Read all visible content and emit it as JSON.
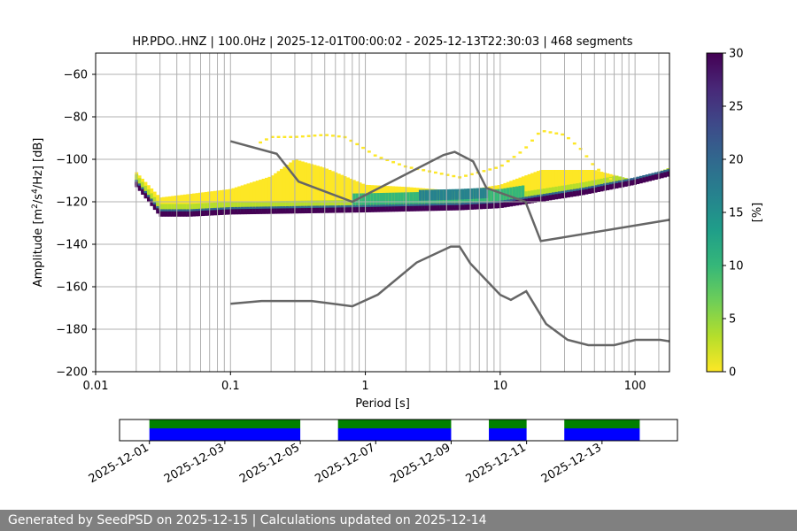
{
  "footer_text": "Generated by SeedPSD on 2025-12-15 | Calculations updated on 2025-12-14",
  "chart_data": [
    {
      "type": "heatmap",
      "title": "HP.PDO..HNZ | 100.0Hz | 2025-12-01T00:00:02 - 2025-12-13T22:30:03 | 468 segments",
      "xlabel": "Period [s]",
      "ylabel_parts": [
        "Amplitude [m",
        "2",
        "/s",
        "4",
        "/Hz] [dB]"
      ],
      "x_scale": "log",
      "xlim": [
        0.01,
        180
      ],
      "ylim": [
        -200,
        -50
      ],
      "x_ticks": [
        {
          "value": 0.01,
          "label": "0.01"
        },
        {
          "value": 0.1,
          "label": "0.1"
        },
        {
          "value": 1,
          "label": "1"
        },
        {
          "value": 10,
          "label": "10"
        },
        {
          "value": 100,
          "label": "100"
        }
      ],
      "y_ticks": [
        {
          "value": -60,
          "label": "−60"
        },
        {
          "value": -80,
          "label": "−80"
        },
        {
          "value": -100,
          "label": "−100"
        },
        {
          "value": -120,
          "label": "−120"
        },
        {
          "value": -140,
          "label": "−140"
        },
        {
          "value": -160,
          "label": "−160"
        },
        {
          "value": -180,
          "label": "−180"
        },
        {
          "value": -200,
          "label": "−200"
        }
      ],
      "grid_periods": [
        0.02,
        0.03,
        0.04,
        0.05,
        0.06,
        0.07,
        0.08,
        0.09,
        0.1,
        0.2,
        0.3,
        0.4,
        0.5,
        0.6,
        0.7,
        0.8,
        0.9,
        1,
        2,
        3,
        4,
        5,
        6,
        7,
        8,
        9,
        10,
        20,
        30,
        40,
        50,
        60,
        70,
        80,
        90,
        100,
        150
      ],
      "colormap": "viridis_r",
      "colorbar": {
        "label": "[%]",
        "range": [
          0,
          30
        ],
        "ticks": [
          {
            "value": 0,
            "label": "0"
          },
          {
            "value": 5,
            "label": "5"
          },
          {
            "value": 10,
            "label": "10"
          },
          {
            "value": 15,
            "label": "15"
          },
          {
            "value": 20,
            "label": "20"
          },
          {
            "value": 25,
            "label": "25"
          },
          {
            "value": 30,
            "label": "30"
          }
        ],
        "colors": [
          "#fde725",
          "#b5de2b",
          "#6ece58",
          "#35b779",
          "#1f9e89",
          "#26828e",
          "#31688e",
          "#3e4989",
          "#482878",
          "#440154"
        ]
      },
      "series": [
        {
          "name": "NHNM",
          "color": "#666666",
          "points": [
            [
              0.1,
              -91.5
            ],
            [
              0.22,
              -97.4
            ],
            [
              0.32,
              -110.5
            ],
            [
              0.8,
              -120
            ],
            [
              3.8,
              -98
            ],
            [
              4.6,
              -96.5
            ],
            [
              6.3,
              -101
            ],
            [
              7.9,
              -113.5
            ],
            [
              15.4,
              -120
            ],
            [
              20,
              -138.5
            ],
            [
              180,
              -128.5
            ]
          ]
        },
        {
          "name": "NLNM",
          "color": "#666666",
          "points": [
            [
              0.1,
              -168
            ],
            [
              0.17,
              -166.7
            ],
            [
              0.4,
              -166.7
            ],
            [
              0.8,
              -169.2
            ],
            [
              1.24,
              -163.7
            ],
            [
              2.4,
              -148.6
            ],
            [
              4.3,
              -141.1
            ],
            [
              5,
              -141.1
            ],
            [
              6,
              -149
            ],
            [
              10,
              -163.8
            ],
            [
              12,
              -166.2
            ],
            [
              15.6,
              -162.1
            ],
            [
              21.9,
              -177.5
            ],
            [
              31.6,
              -185
            ],
            [
              45,
              -187.5
            ],
            [
              70,
              -187.5
            ],
            [
              101,
              -185
            ],
            [
              154,
              -185
            ],
            [
              180,
              -185.7
            ]
          ]
        }
      ],
      "psd_bands": [
        {
          "name": "dense_mode",
          "percent_range": [
            20,
            30
          ],
          "points": [
            [
              0.02,
              -111
            ],
            [
              0.03,
              -125
            ],
            [
              0.05,
              -125
            ],
            [
              0.1,
              -124
            ],
            [
              1,
              -123
            ],
            [
              5,
              -122
            ],
            [
              10,
              -121
            ],
            [
              20,
              -118
            ],
            [
              40,
              -115
            ],
            [
              100,
              -110
            ],
            [
              180,
              -106
            ]
          ]
        },
        {
          "name": "background_spread",
          "percent_range": [
            0,
            10
          ],
          "points": [
            [
              0.02,
              -106
            ],
            [
              0.03,
              -118
            ],
            [
              0.1,
              -114
            ],
            [
              0.2,
              -108
            ],
            [
              0.3,
              -100
            ],
            [
              0.5,
              -104
            ],
            [
              1,
              -112
            ],
            [
              2,
              -113
            ],
            [
              5,
              -115
            ],
            [
              10,
              -112
            ],
            [
              20,
              -105
            ],
            [
              50,
              -105
            ],
            [
              100,
              -110
            ],
            [
              180,
              -104
            ]
          ]
        },
        {
          "name": "upper_edge",
          "percent_range": [
            0,
            2
          ],
          "points": [
            [
              0.15,
              -93
            ],
            [
              0.2,
              -89
            ],
            [
              0.3,
              -89
            ],
            [
              0.5,
              -88
            ],
            [
              0.7,
              -89
            ],
            [
              0.9,
              -93
            ],
            [
              1.2,
              -98
            ],
            [
              2,
              -103
            ],
            [
              5,
              -108
            ],
            [
              10,
              -103
            ],
            [
              15,
              -95
            ],
            [
              20,
              -86
            ],
            [
              30,
              -88
            ],
            [
              40,
              -95
            ],
            [
              50,
              -103
            ],
            [
              70,
              -110
            ]
          ]
        }
      ]
    },
    {
      "type": "timeline",
      "date_range": [
        "2025-11-30T05:00",
        "2025-12-15T00:00"
      ],
      "x_tick_labels": [
        "2025-12-01",
        "2025-12-03",
        "2025-12-05",
        "2025-12-07",
        "2025-12-09",
        "2025-12-11",
        "2025-12-13"
      ],
      "x_tick_dates": [
        "2025-12-01",
        "2025-12-03",
        "2025-12-05",
        "2025-12-07",
        "2025-12-09",
        "2025-12-11",
        "2025-12-13"
      ],
      "segments": [
        {
          "start": "2025-12-01T00:00",
          "end": "2025-12-05T00:00"
        },
        {
          "start": "2025-12-06T00:00",
          "end": "2025-12-09T00:00"
        },
        {
          "start": "2025-12-10T00:00",
          "end": "2025-12-11T00:00"
        },
        {
          "start": "2025-12-12T00:00",
          "end": "2025-12-14T00:00"
        }
      ],
      "data_color": "#0000ff",
      "psd_color": "#008000"
    }
  ]
}
